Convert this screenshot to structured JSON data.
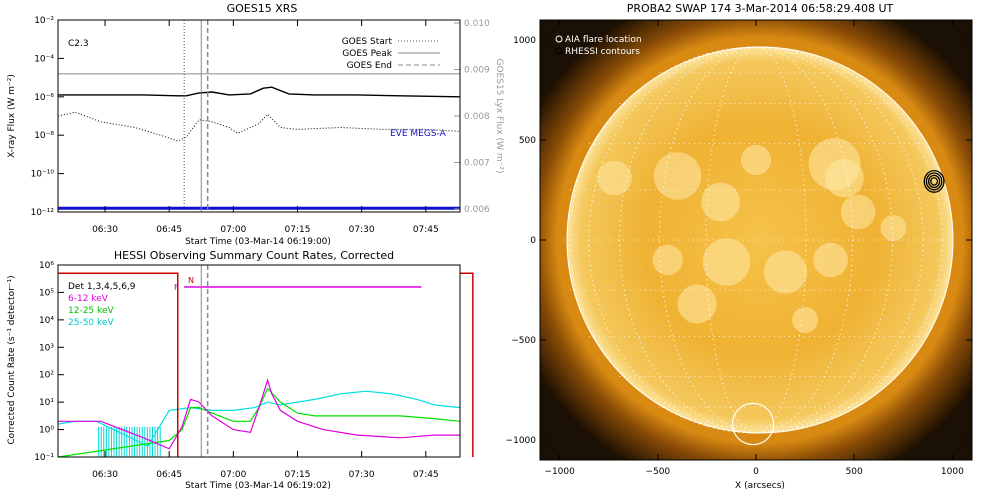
{
  "chart_data": [
    {
      "type": "line",
      "title": "GOES15 XRS",
      "xlabel": "Start Time (03-Mar-14 06:19:00)",
      "ylabel": "X-ray Flux (W m⁻²)",
      "ylabel_right": "GOES15 Lyx Flux (W m⁻²)",
      "x_range_min": [
        0,
        94
      ],
      "x_ticks": [
        {
          "min": 11,
          "label": "06:30"
        },
        {
          "min": 26,
          "label": "06:45"
        },
        {
          "min": 41,
          "label": "07:00"
        },
        {
          "min": 56,
          "label": "07:15"
        },
        {
          "min": 71,
          "label": "07:30"
        },
        {
          "min": 86,
          "label": "07:45"
        }
      ],
      "y_log_range": [
        -12,
        -2
      ],
      "y_ticks": [
        {
          "exp": -12,
          "label": "10⁻¹²"
        },
        {
          "exp": -10,
          "label": "10⁻¹⁰"
        },
        {
          "exp": -8,
          "label": "10⁻⁸"
        },
        {
          "exp": -6,
          "label": "10⁻⁶"
        },
        {
          "exp": -4,
          "label": "10⁻⁴"
        },
        {
          "exp": -2,
          "label": "10⁻²"
        }
      ],
      "y_right_ticks": [
        "0.006",
        "0.007",
        "0.008",
        "0.009",
        "0.010"
      ],
      "annotation": "C2.3",
      "eve_label": "EVE MEGS-A",
      "legend": [
        "GOES Start",
        "GOES Peak",
        "GOES End"
      ],
      "markers_min": {
        "start": 29.5,
        "peak": 33.5,
        "end": 35
      },
      "series": [
        {
          "name": "long",
          "log10_values": [
            [
              0,
              -5.9
            ],
            [
              10,
              -5.9
            ],
            [
              20,
              -5.9
            ],
            [
              28,
              -5.95
            ],
            [
              30,
              -5.95
            ],
            [
              33,
              -5.8
            ],
            [
              36,
              -5.75
            ],
            [
              40,
              -5.9
            ],
            [
              45,
              -5.85
            ],
            [
              48,
              -5.55
            ],
            [
              50,
              -5.5
            ],
            [
              54,
              -5.85
            ],
            [
              60,
              -5.9
            ],
            [
              70,
              -5.9
            ],
            [
              80,
              -5.95
            ],
            [
              94,
              -6.0
            ]
          ]
        },
        {
          "name": "short",
          "log10_values": [
            [
              0,
              -7.0
            ],
            [
              4,
              -6.8
            ],
            [
              10,
              -7.3
            ],
            [
              18,
              -7.6
            ],
            [
              24,
              -8.0
            ],
            [
              28,
              -8.3
            ],
            [
              30,
              -8.1
            ],
            [
              33,
              -7.2
            ],
            [
              36,
              -7.3
            ],
            [
              40,
              -7.6
            ],
            [
              42,
              -7.9
            ],
            [
              44,
              -7.7
            ],
            [
              47,
              -7.4
            ],
            [
              49,
              -6.9
            ],
            [
              52,
              -7.6
            ],
            [
              56,
              -7.7
            ],
            [
              66,
              -7.6
            ],
            [
              76,
              -7.7
            ],
            [
              86,
              -7.7
            ],
            [
              94,
              -7.8
            ]
          ]
        },
        {
          "name": "lyx",
          "log10_values": [
            [
              0,
              -4.8
            ],
            [
              94,
              -4.8
            ]
          ]
        },
        {
          "name": "eve",
          "log10_values": [
            [
              0,
              -11.8
            ],
            [
              94,
              -11.8
            ]
          ]
        }
      ]
    },
    {
      "type": "line",
      "title": "HESSI Observing Summary Count Rates, Corrected",
      "xlabel": "Start Time (03-Mar-14 06:19:02)",
      "ylabel": "Corrected Count Rate (s⁻¹ detector⁻¹)",
      "x_range_min": [
        0,
        94
      ],
      "x_ticks": [
        {
          "min": 11,
          "label": "06:30"
        },
        {
          "min": 26,
          "label": "06:45"
        },
        {
          "min": 41,
          "label": "07:00"
        },
        {
          "min": 56,
          "label": "07:15"
        },
        {
          "min": 71,
          "label": "07:30"
        },
        {
          "min": 86,
          "label": "07:45"
        }
      ],
      "y_log_range": [
        -1,
        6
      ],
      "y_ticks": [
        {
          "exp": -1,
          "label": "10⁻¹"
        },
        {
          "exp": 0,
          "label": "10⁰"
        },
        {
          "exp": 1,
          "label": "10¹"
        },
        {
          "exp": 2,
          "label": "10²"
        },
        {
          "exp": 3,
          "label": "10³"
        },
        {
          "exp": 4,
          "label": "10⁴"
        },
        {
          "exp": 5,
          "label": "10⁵"
        },
        {
          "exp": 6,
          "label": "10⁶"
        }
      ],
      "legend_header": "Det 1,3,4,5,6,9",
      "flag_labels": [
        "N",
        "F"
      ],
      "night_min": [
        28,
        97
      ],
      "flare_flag_min": [
        29.5,
        85
      ],
      "series": [
        {
          "name": "6-12 keV",
          "color": "#e000e0",
          "log10_values": [
            [
              0,
              0.3
            ],
            [
              10,
              0.3
            ],
            [
              20,
              -0.3
            ],
            [
              26,
              -0.7
            ],
            [
              29,
              0.1
            ],
            [
              31,
              1.1
            ],
            [
              33,
              1.0
            ],
            [
              36,
              0.5
            ],
            [
              41,
              0.0
            ],
            [
              45,
              -0.1
            ],
            [
              47,
              0.8
            ],
            [
              49,
              1.8
            ],
            [
              50,
              1.3
            ],
            [
              52,
              0.7
            ],
            [
              56,
              0.3
            ],
            [
              62,
              0.0
            ],
            [
              70,
              -0.2
            ],
            [
              80,
              -0.3
            ],
            [
              88,
              -0.2
            ],
            [
              94,
              -0.2
            ]
          ]
        },
        {
          "name": "12-25 keV",
          "color": "#00e000",
          "log10_values": [
            [
              0,
              -1
            ],
            [
              26,
              -0.4
            ],
            [
              29,
              0.0
            ],
            [
              31,
              0.8
            ],
            [
              33,
              0.8
            ],
            [
              36,
              0.6
            ],
            [
              41,
              0.3
            ],
            [
              45,
              0.3
            ],
            [
              47,
              0.8
            ],
            [
              49,
              1.5
            ],
            [
              52,
              1.0
            ],
            [
              56,
              0.6
            ],
            [
              60,
              0.5
            ],
            [
              70,
              0.5
            ],
            [
              80,
              0.5
            ],
            [
              88,
              0.4
            ],
            [
              94,
              0.3
            ]
          ]
        },
        {
          "name": "25-50 keV",
          "color": "#00e0e0",
          "log10_values": [
            [
              0,
              0.2
            ],
            [
              4,
              0.3
            ],
            [
              9,
              0.3
            ],
            [
              13,
              0.0
            ],
            [
              21,
              -0.6
            ],
            [
              26,
              0.7
            ],
            [
              31,
              0.8
            ],
            [
              36,
              0.7
            ],
            [
              41,
              0.7
            ],
            [
              46,
              0.8
            ],
            [
              49,
              1.0
            ],
            [
              52,
              0.9
            ],
            [
              60,
              1.1
            ],
            [
              66,
              1.3
            ],
            [
              72,
              1.4
            ],
            [
              78,
              1.3
            ],
            [
              84,
              1.1
            ],
            [
              88,
              0.9
            ],
            [
              94,
              0.8
            ]
          ]
        }
      ]
    },
    {
      "type": "image",
      "title": "PROBA2 SWAP 174  3-Mar-2014 06:58:29.408 UT",
      "xlabel": "X (arcsecs)",
      "ylabel": "",
      "x_range": [
        -1100,
        1100
      ],
      "y_range": [
        -1100,
        1100
      ],
      "ticks": [
        -1000,
        -500,
        0,
        500,
        1000
      ],
      "x_tick_labels": [
        "−1000",
        "−500",
        "0",
        "500",
        "1000"
      ],
      "y_tick_labels": [
        "−1000",
        "−500",
        "0",
        "500",
        "1000"
      ],
      "legend": [
        "AIA flare location",
        "RHESSI contours"
      ],
      "solar_radius_arcsec": 960,
      "aia_circle": {
        "x": -15,
        "y": -920,
        "r": 105
      },
      "rhessi_contour_center": {
        "x": 907,
        "y": 293
      }
    }
  ]
}
